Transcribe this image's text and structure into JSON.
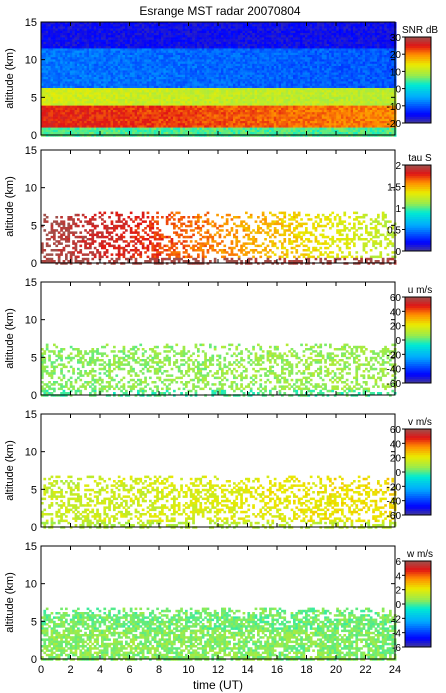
{
  "figure_title": "Esrange MST radar 20070804",
  "chart_data": [
    {
      "type": "heatmap",
      "id": "snr",
      "ylabel": "altitude (km)",
      "xlim": [
        0,
        24
      ],
      "ylim": [
        0,
        15
      ],
      "yticks": [
        "0",
        "5",
        "10",
        "15"
      ],
      "colorbar": {
        "label": "SNR dB",
        "range": [
          -20,
          30
        ],
        "ticks": [
          "30",
          "20",
          "10",
          "0",
          "-10",
          "-20"
        ]
      },
      "coverage": "full",
      "layers": [
        {
          "alt_top": 1.0,
          "value_start": 5,
          "value_end": 5
        },
        {
          "alt_top": 4.0,
          "value_start": 25,
          "value_end": 20
        },
        {
          "alt_top": 6.5,
          "value_start": 12,
          "value_end": 10
        },
        {
          "alt_top": 11.5,
          "value_start": -8,
          "value_end": -10
        },
        {
          "alt_top": 15.0,
          "value_start": -16,
          "value_end": -16
        }
      ]
    },
    {
      "type": "heatmap",
      "id": "tau",
      "ylabel": "altitude (km)",
      "xlim": [
        0,
        24
      ],
      "ylim": [
        0,
        15
      ],
      "yticks": [
        "0",
        "5",
        "10",
        "15"
      ],
      "colorbar": {
        "label": "tau S",
        "range": [
          0,
          2
        ],
        "ticks": [
          "2",
          "1.5",
          "1",
          "0.5",
          "0"
        ]
      },
      "coverage": "sparse",
      "layers": [
        {
          "alt_top": 0.8,
          "value_start": 2.0,
          "value_end": 2.0
        },
        {
          "alt_top": 7.0,
          "value_start": 2.0,
          "value_end": 1.2
        }
      ]
    },
    {
      "type": "heatmap",
      "id": "u",
      "ylabel": "altitude (km)",
      "xlim": [
        0,
        24
      ],
      "ylim": [
        0,
        15
      ],
      "yticks": [
        "0",
        "5",
        "10",
        "15"
      ],
      "colorbar": {
        "label": "u m/s",
        "range": [
          -60,
          60
        ],
        "ticks": [
          "60",
          "40",
          "20",
          "0",
          "-20",
          "-40",
          "-60"
        ]
      },
      "coverage": "sparse",
      "layers": [
        {
          "alt_top": 0.8,
          "value_start": 0,
          "value_end": 0
        },
        {
          "alt_top": 7.0,
          "value_start": 5,
          "value_end": 8
        }
      ]
    },
    {
      "type": "heatmap",
      "id": "v",
      "ylabel": "altitude (km)",
      "xlim": [
        0,
        24
      ],
      "ylim": [
        0,
        15
      ],
      "yticks": [
        "0",
        "5",
        "10",
        "15"
      ],
      "colorbar": {
        "label": "v m/s",
        "range": [
          -60,
          60
        ],
        "ticks": [
          "60",
          "40",
          "20",
          "0",
          "-20",
          "-40",
          "-60"
        ]
      },
      "coverage": "sparse",
      "layers": [
        {
          "alt_top": 0.8,
          "value_start": 10,
          "value_end": 12
        },
        {
          "alt_top": 7.0,
          "value_start": 14,
          "value_end": 24
        }
      ]
    },
    {
      "type": "heatmap",
      "id": "w",
      "ylabel": "altitude (km)",
      "xlabel": "time (UT)",
      "xlim": [
        0,
        24
      ],
      "ylim": [
        0,
        15
      ],
      "yticks": [
        "0",
        "5",
        "10",
        "15"
      ],
      "xticks": [
        "0",
        "2",
        "4",
        "6",
        "8",
        "10",
        "12",
        "14",
        "16",
        "18",
        "20",
        "22",
        "24"
      ],
      "colorbar": {
        "label": "w m/s",
        "range": [
          -6,
          6
        ],
        "ticks": [
          "6",
          "4",
          "2",
          "0",
          "-2",
          "-4",
          "-6"
        ]
      },
      "coverage": "dense",
      "layers": [
        {
          "alt_top": 0.8,
          "value_start": 0.5,
          "value_end": 0.5
        },
        {
          "alt_top": 4.0,
          "value_start": 0.6,
          "value_end": 0.4
        },
        {
          "alt_top": 7.0,
          "value_start": 0.3,
          "value_end": 0.3
        }
      ]
    }
  ]
}
